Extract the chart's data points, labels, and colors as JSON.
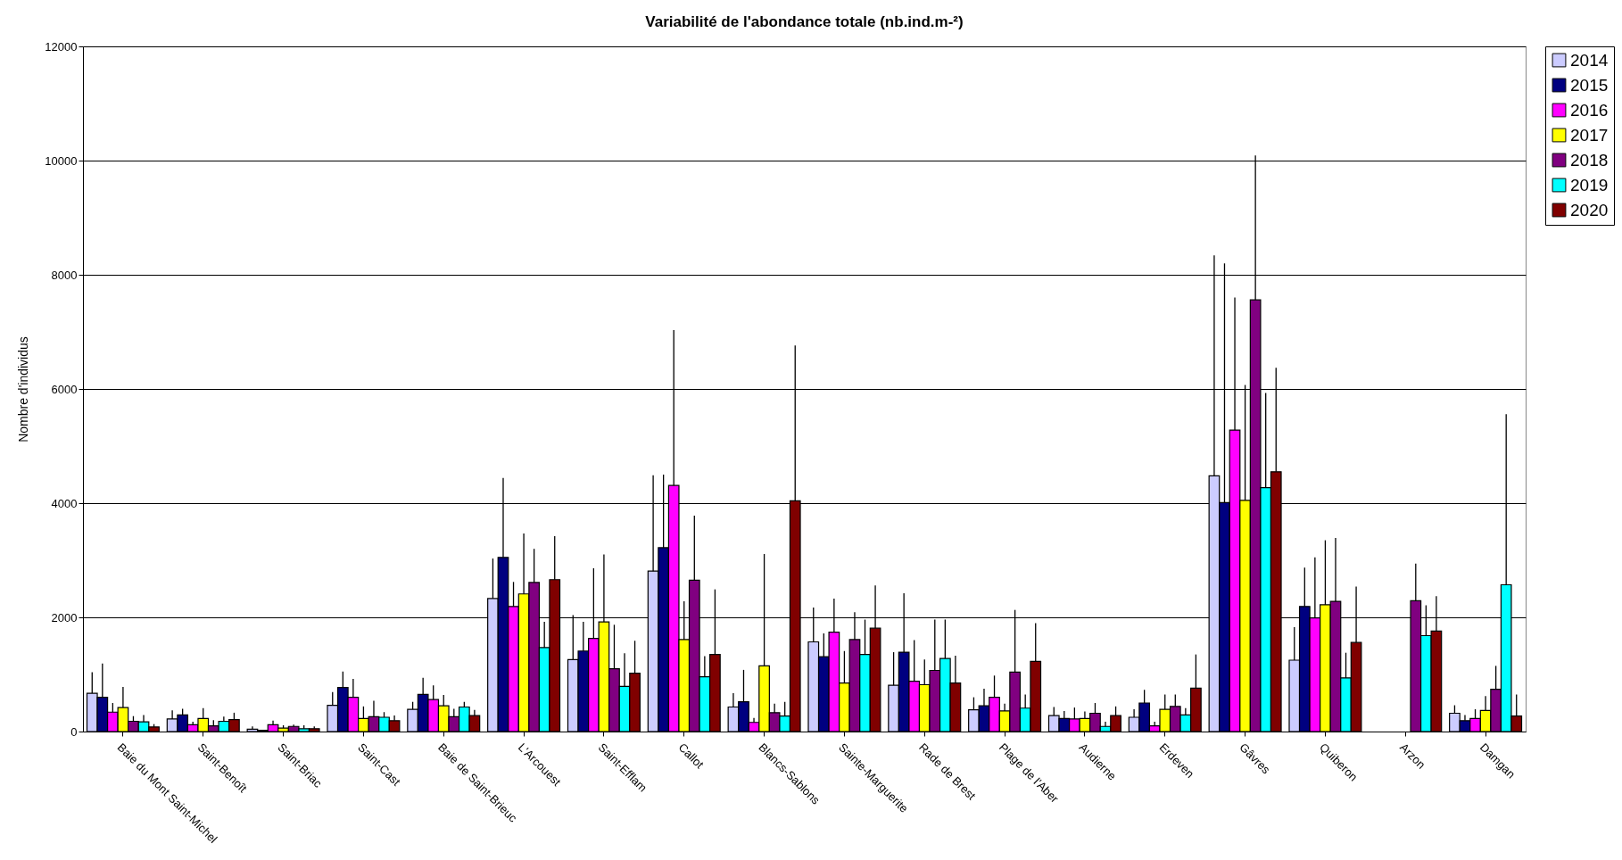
{
  "chart_data": {
    "type": "bar",
    "title": "Variabilité de l'abondance totale (nb.ind.m-²)",
    "ylabel": "Nombre d'individus",
    "categories": [
      "Baie du Mont Saint-Michel",
      "Saint-Benoît",
      "Saint-Briac",
      "Saint-Cast",
      "Baie de Saint-Brieuc",
      "L'Arcouest",
      "Saint-Efflam",
      "Callot",
      "Blancs-Sablons",
      "Sainte-Marguerite",
      "Rade de Brest",
      "Plage de l'Aber",
      "Audierne",
      "Erdeven",
      "Gâvres",
      "Quiberon",
      "Arzon",
      "Damgan"
    ],
    "series": [
      {
        "name": "2014",
        "color": "#ccccff",
        "values": [
          670,
          220,
          40,
          460,
          390,
          2330,
          1260,
          2810,
          430,
          1570,
          810,
          380,
          280,
          250,
          4480,
          1250,
          null,
          320
        ],
        "errors": [
          [
            670,
            1040
          ],
          [
            220,
            370
          ],
          [
            40,
            90
          ],
          [
            460,
            690
          ],
          [
            390,
            520
          ],
          [
            2330,
            3030
          ],
          [
            1260,
            2040
          ],
          [
            2810,
            4490
          ],
          [
            430,
            670
          ],
          [
            1570,
            2170
          ],
          [
            810,
            1390
          ],
          [
            380,
            600
          ],
          [
            280,
            430
          ],
          [
            250,
            390
          ],
          [
            4480,
            8340
          ],
          [
            1250,
            1830
          ],
          null,
          [
            320,
            460
          ]
        ]
      },
      {
        "name": "2015",
        "color": "#000080",
        "values": [
          600,
          290,
          20,
          770,
          650,
          3050,
          1410,
          3220,
          520,
          1310,
          1390,
          450,
          230,
          500,
          4010,
          2190,
          null,
          190
        ],
        "errors": [
          [
            600,
            1190
          ],
          [
            290,
            400
          ],
          null,
          [
            770,
            1050
          ],
          [
            650,
            940
          ],
          [
            3050,
            4440
          ],
          [
            1410,
            1920
          ],
          [
            3220,
            4500
          ],
          [
            520,
            1080
          ],
          [
            1310,
            1720
          ],
          [
            1390,
            2420
          ],
          [
            450,
            750
          ],
          [
            230,
            360
          ],
          [
            500,
            730
          ],
          [
            4010,
            8200
          ],
          [
            2190,
            2870
          ],
          null,
          [
            190,
            290
          ]
        ]
      },
      {
        "name": "2016",
        "color": "#ff00ff",
        "values": [
          340,
          120,
          120,
          600,
          560,
          2190,
          1630,
          4310,
          160,
          1740,
          880,
          600,
          220,
          100,
          5280,
          1990,
          null,
          230
        ],
        "errors": [
          [
            340,
            500
          ],
          [
            120,
            170
          ],
          [
            120,
            190
          ],
          [
            600,
            920
          ],
          [
            560,
            810
          ],
          [
            2190,
            2620
          ],
          [
            1630,
            2860
          ],
          [
            4310,
            7030
          ],
          [
            160,
            240
          ],
          [
            1740,
            2330
          ],
          [
            880,
            1600
          ],
          [
            600,
            980
          ],
          [
            220,
            420
          ],
          [
            100,
            170
          ],
          [
            5280,
            7600
          ],
          [
            1990,
            3050
          ],
          null,
          [
            230,
            390
          ]
        ]
      },
      {
        "name": "2017",
        "color": "#ffff00",
        "values": [
          420,
          230,
          60,
          230,
          450,
          2410,
          1920,
          1610,
          1150,
          850,
          820,
          360,
          230,
          390,
          4050,
          2220,
          null,
          370
        ],
        "errors": [
          [
            420,
            780
          ],
          [
            230,
            410
          ],
          [
            60,
            110
          ],
          [
            230,
            440
          ],
          [
            450,
            640
          ],
          [
            2410,
            3470
          ],
          [
            1920,
            3100
          ],
          [
            1610,
            2280
          ],
          [
            1150,
            3110
          ],
          [
            850,
            1410
          ],
          [
            820,
            1260
          ],
          [
            360,
            490
          ],
          [
            230,
            350
          ],
          [
            390,
            650
          ],
          [
            4050,
            6070
          ],
          [
            2220,
            3350
          ],
          null,
          [
            370,
            620
          ]
        ]
      },
      {
        "name": "2018",
        "color": "#800080",
        "values": [
          180,
          100,
          90,
          260,
          260,
          2610,
          1100,
          2650,
          330,
          1610,
          1070,
          1040,
          320,
          440,
          7560,
          2280,
          2290,
          740
        ],
        "errors": [
          [
            180,
            270
          ],
          [
            100,
            200
          ],
          [
            90,
            120
          ],
          [
            260,
            540
          ],
          [
            260,
            400
          ],
          [
            2610,
            3200
          ],
          [
            1100,
            1870
          ],
          [
            2650,
            3780
          ],
          [
            330,
            490
          ],
          [
            1610,
            2090
          ],
          [
            1070,
            1960
          ],
          [
            1040,
            2130
          ],
          [
            320,
            500
          ],
          [
            440,
            650
          ],
          [
            7560,
            10090
          ],
          [
            2280,
            3390
          ],
          [
            2290,
            2940
          ],
          [
            740,
            1150
          ]
        ]
      },
      {
        "name": "2019",
        "color": "#00ffff",
        "values": [
          170,
          180,
          50,
          250,
          430,
          1470,
          790,
          960,
          270,
          1350,
          1280,
          410,
          90,
          290,
          4270,
          940,
          1680,
          2570
        ],
        "errors": [
          [
            170,
            290
          ],
          [
            180,
            260
          ],
          [
            50,
            110
          ],
          [
            250,
            340
          ],
          [
            430,
            520
          ],
          [
            1470,
            1920
          ],
          [
            790,
            1370
          ],
          [
            960,
            1320
          ],
          [
            270,
            520
          ],
          [
            1350,
            1960
          ],
          [
            1280,
            1960
          ],
          [
            410,
            650
          ],
          [
            90,
            170
          ],
          [
            290,
            410
          ],
          [
            4270,
            5930
          ],
          [
            940,
            1380
          ],
          [
            1680,
            2210
          ],
          [
            2570,
            5560
          ]
        ]
      },
      {
        "name": "2020",
        "color": "#800000",
        "values": [
          80,
          210,
          50,
          190,
          280,
          2660,
          1020,
          1350,
          4040,
          1810,
          850,
          1230,
          280,
          760,
          4550,
          1560,
          1760,
          270
        ],
        "errors": [
          [
            80,
            130
          ],
          [
            210,
            330
          ],
          [
            50,
            90
          ],
          [
            190,
            280
          ],
          [
            280,
            380
          ],
          [
            2660,
            3420
          ],
          [
            1020,
            1590
          ],
          [
            1350,
            2490
          ],
          [
            4040,
            6760
          ],
          [
            1810,
            2560
          ],
          [
            850,
            1330
          ],
          [
            1230,
            1900
          ],
          [
            280,
            440
          ],
          [
            760,
            1350
          ],
          [
            4550,
            6370
          ],
          [
            1560,
            2540
          ],
          [
            1760,
            2370
          ],
          [
            270,
            650
          ]
        ]
      }
    ],
    "ylim": [
      0,
      12000
    ],
    "yticks": [
      0,
      2000,
      4000,
      6000,
      8000,
      10000,
      12000
    ],
    "grid": "y",
    "legend": "top right"
  }
}
